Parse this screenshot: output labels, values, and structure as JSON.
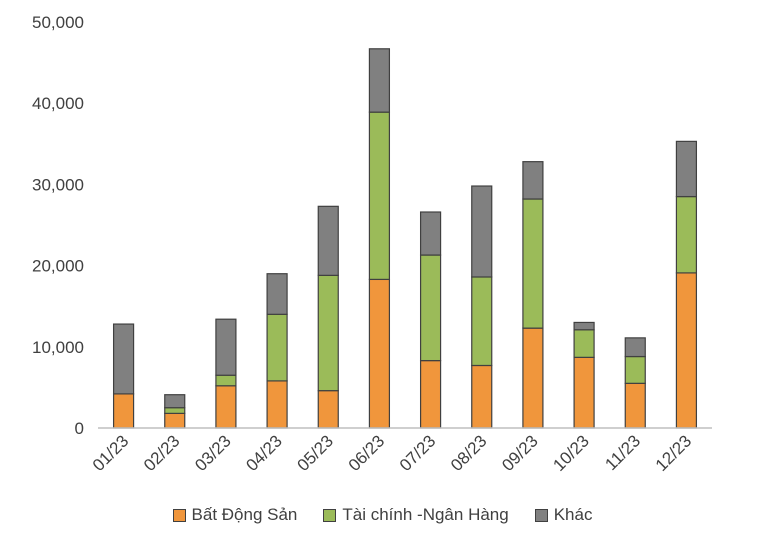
{
  "chart_data": {
    "type": "bar",
    "stacked": true,
    "categories": [
      "01/23",
      "02/23",
      "03/23",
      "04/23",
      "05/23",
      "06/23",
      "07/23",
      "08/23",
      "09/23",
      "10/23",
      "11/23",
      "12/23"
    ],
    "series": [
      {
        "name": "Bất Động Sản",
        "color": "#F0963C",
        "values": [
          4200,
          1800,
          5200,
          5800,
          4600,
          18300,
          8300,
          7700,
          12300,
          8700,
          5500,
          19100
        ]
      },
      {
        "name": "Tài chính -Ngân Hàng",
        "color": "#9BBB59",
        "values": [
          0,
          700,
          1300,
          8200,
          14200,
          20600,
          13000,
          10900,
          15900,
          3400,
          3300,
          9400
        ]
      },
      {
        "name": "Khác",
        "color": "#808080",
        "values": [
          8600,
          1600,
          6900,
          5000,
          8500,
          7800,
          5300,
          11200,
          4600,
          900,
          2300,
          6800
        ]
      }
    ],
    "yticks": [
      "0",
      "10,000",
      "20,000",
      "30,000",
      "40,000",
      "50,000"
    ],
    "ylim": [
      0,
      50000
    ],
    "legend_position": "bottom",
    "grid": false
  }
}
